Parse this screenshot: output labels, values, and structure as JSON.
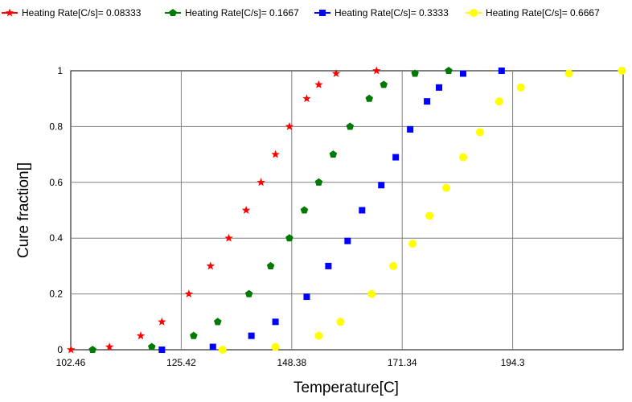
{
  "chart_data": {
    "type": "scatter",
    "title": "",
    "xlabel": "Temperature[C]",
    "ylabel": "Cure fraction[]",
    "xlim": [
      102.46,
      217.26
    ],
    "ylim": [
      0,
      1
    ],
    "x_ticks": [
      "102.46",
      "125.42",
      "148.38",
      "171.34",
      "194.3"
    ],
    "y_ticks": [
      "0",
      "0.2",
      "0.4",
      "0.6",
      "0.8",
      "1"
    ],
    "grid": true,
    "legend_position": "top",
    "series": [
      {
        "name": "Heating Rate[C/s]= 0.08333",
        "color": "#ff0000",
        "marker": "star",
        "points": [
          [
            102.5,
            0.0
          ],
          [
            110.5,
            0.01
          ],
          [
            117.0,
            0.05
          ],
          [
            121.4,
            0.1
          ],
          [
            127.0,
            0.2
          ],
          [
            131.5,
            0.3
          ],
          [
            135.3,
            0.4
          ],
          [
            138.9,
            0.5
          ],
          [
            142.0,
            0.6
          ],
          [
            145.0,
            0.7
          ],
          [
            147.9,
            0.8
          ],
          [
            151.5,
            0.9
          ],
          [
            154.0,
            0.95
          ],
          [
            157.6,
            0.99
          ],
          [
            166.0,
            1.0
          ]
        ]
      },
      {
        "name": "Heating Rate[C/s]= 0.1667",
        "color": "#007a00",
        "marker": "pentagon",
        "points": [
          [
            107.0,
            0.0
          ],
          [
            119.3,
            0.01
          ],
          [
            128.0,
            0.05
          ],
          [
            133.0,
            0.1
          ],
          [
            139.5,
            0.2
          ],
          [
            144.0,
            0.3
          ],
          [
            147.9,
            0.4
          ],
          [
            151.0,
            0.5
          ],
          [
            154.0,
            0.6
          ],
          [
            157.0,
            0.7
          ],
          [
            160.5,
            0.8
          ],
          [
            164.5,
            0.9
          ],
          [
            167.5,
            0.95
          ],
          [
            174.0,
            0.99
          ],
          [
            181.0,
            1.0
          ]
        ]
      },
      {
        "name": "Heating Rate[C/s]= 0.3333",
        "color": "#0000ff",
        "marker": "square",
        "points": [
          [
            121.4,
            0.0
          ],
          [
            132.0,
            0.01
          ],
          [
            140.0,
            0.05
          ],
          [
            145.0,
            0.1
          ],
          [
            151.5,
            0.19
          ],
          [
            156.0,
            0.3
          ],
          [
            160.0,
            0.39
          ],
          [
            163.0,
            0.5
          ],
          [
            167.0,
            0.59
          ],
          [
            170.0,
            0.69
          ],
          [
            173.0,
            0.79
          ],
          [
            176.5,
            0.89
          ],
          [
            179.0,
            0.94
          ],
          [
            184.0,
            0.99
          ],
          [
            192.0,
            1.0
          ]
        ]
      },
      {
        "name": "Heating Rate[C/s]= 0.6667",
        "color": "#ffff00",
        "marker": "circle",
        "points": [
          [
            134.0,
            0.0
          ],
          [
            145.0,
            0.01
          ],
          [
            154.0,
            0.05
          ],
          [
            158.5,
            0.1
          ],
          [
            165.0,
            0.2
          ],
          [
            169.5,
            0.3
          ],
          [
            173.5,
            0.38
          ],
          [
            177.0,
            0.48
          ],
          [
            180.5,
            0.58
          ],
          [
            184.0,
            0.69
          ],
          [
            187.5,
            0.78
          ],
          [
            191.5,
            0.89
          ],
          [
            196.0,
            0.94
          ],
          [
            206.0,
            0.99
          ],
          [
            217.0,
            1.0
          ]
        ]
      }
    ]
  }
}
